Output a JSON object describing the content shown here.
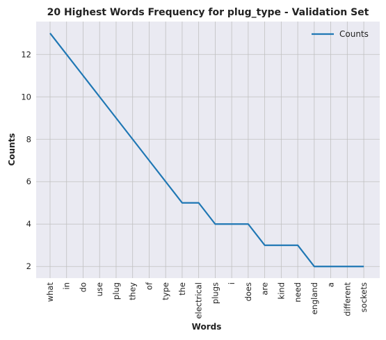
{
  "chart_data": {
    "type": "line",
    "title": "20 Highest Words Frequency for plug_type - Validation Set",
    "xlabel": "Words",
    "ylabel": "Counts",
    "categories": [
      "what",
      "in",
      "do",
      "use",
      "plug",
      "they",
      "of",
      "type",
      "the",
      "electrical",
      "plugs",
      "i",
      "does",
      "are",
      "kind",
      "need",
      "england",
      "a",
      "different",
      "sockets"
    ],
    "series": [
      {
        "name": "Counts",
        "values": [
          13,
          12,
          11,
          10,
          9,
          8,
          7,
          6,
          5,
          5,
          4,
          4,
          4,
          3,
          3,
          3,
          2,
          2,
          2,
          2
        ]
      }
    ],
    "ylim": [
      1.45,
      13.55
    ],
    "yticks": [
      2,
      4,
      6,
      8,
      10,
      12
    ],
    "grid": true,
    "legend": "top-right",
    "colors": {
      "line": "#1f77b4",
      "plot_background": "#eaeaf2",
      "grid": "#c0c0c0"
    }
  }
}
